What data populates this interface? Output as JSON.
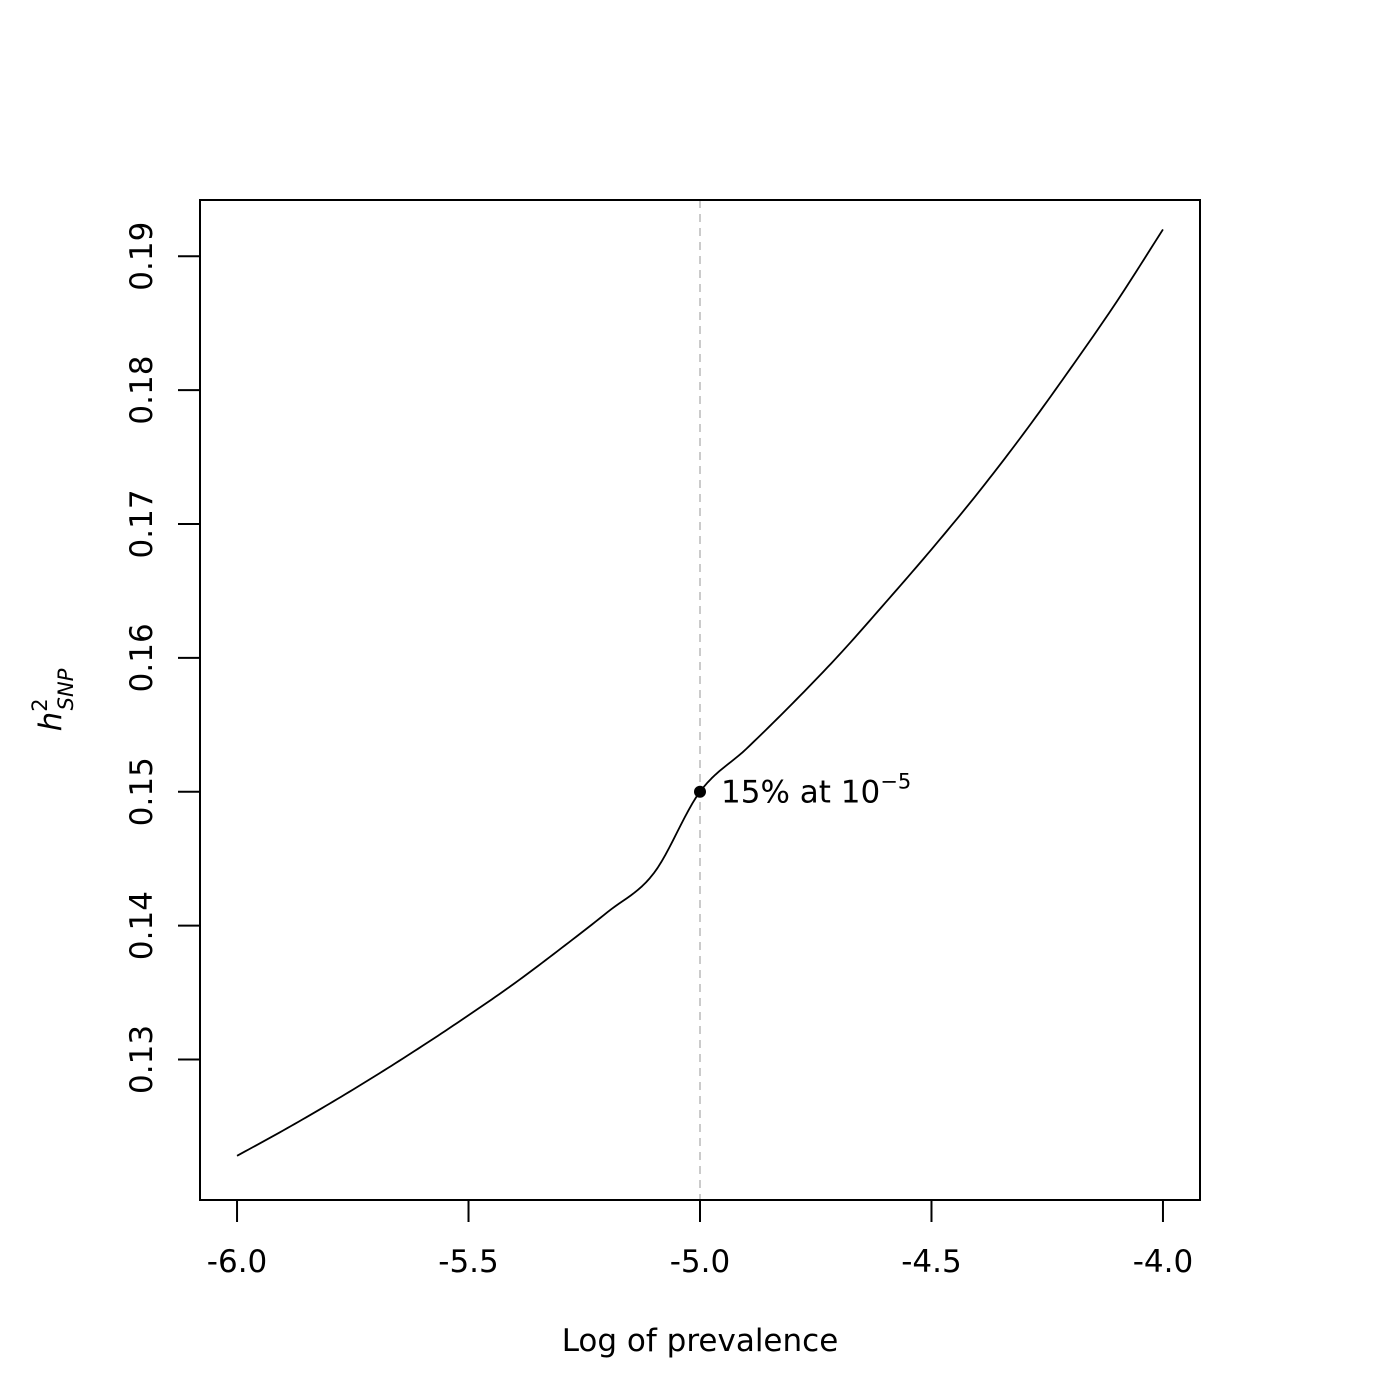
{
  "chart_data": {
    "type": "line",
    "title": "",
    "xlabel": "Log of prevalence",
    "ylabel": {
      "base": "h",
      "superscript": "2",
      "subscript": "SNP"
    },
    "xlim": [
      -6.08,
      -3.92
    ],
    "ylim": [
      0.1195,
      0.1942
    ],
    "x_ticks": [
      {
        "value": -6.0,
        "label": "-6.0"
      },
      {
        "value": -5.5,
        "label": "-5.5"
      },
      {
        "value": -5.0,
        "label": "-5.0"
      },
      {
        "value": -4.5,
        "label": "-4.5"
      },
      {
        "value": -4.0,
        "label": "-4.0"
      }
    ],
    "y_ticks": [
      {
        "value": 0.13,
        "label": "0.13"
      },
      {
        "value": 0.14,
        "label": "0.14"
      },
      {
        "value": 0.15,
        "label": "0.15"
      },
      {
        "value": 0.16,
        "label": "0.16"
      },
      {
        "value": 0.17,
        "label": "0.17"
      },
      {
        "value": 0.18,
        "label": "0.18"
      },
      {
        "value": 0.19,
        "label": "0.19"
      }
    ],
    "series": [
      {
        "x": [
          -6.0,
          -5.9,
          -5.8,
          -5.7,
          -5.6,
          -5.5,
          -5.4,
          -5.3,
          -5.2,
          -5.1,
          -5.0,
          -4.9,
          -4.8,
          -4.7,
          -4.6,
          -4.5,
          -4.4,
          -4.3,
          -4.2,
          -4.1,
          -4.0
        ],
        "y": [
          0.1228,
          0.1247,
          0.1267,
          0.1288,
          0.131,
          0.1333,
          0.1357,
          0.1383,
          0.141,
          0.1439,
          0.15,
          0.1532,
          0.1566,
          0.1602,
          0.1641,
          0.1681,
          0.1723,
          0.1768,
          0.1816,
          0.1866,
          0.192
        ],
        "color": "#000000"
      }
    ],
    "reference_line": {
      "x": -5.0,
      "style": "dashed",
      "color": "#bebebe"
    },
    "highlight_point": {
      "x": -5.0,
      "y": 0.15,
      "label": "15% at 10",
      "label_superscript": "−5"
    },
    "grid": false,
    "legend": "none"
  }
}
